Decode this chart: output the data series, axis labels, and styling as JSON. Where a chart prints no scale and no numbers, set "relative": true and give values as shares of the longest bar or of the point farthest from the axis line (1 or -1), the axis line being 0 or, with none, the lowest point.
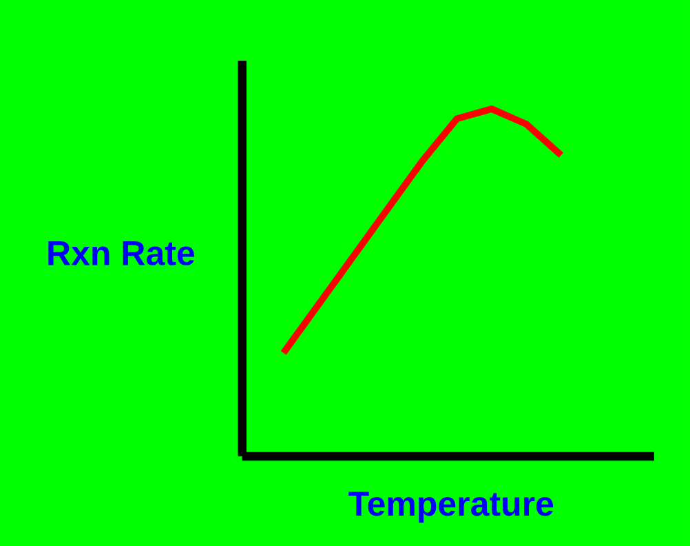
{
  "chart_data": {
    "type": "line",
    "relative": true,
    "xlabel": "Temperature",
    "ylabel": "Rxn Rate",
    "categories": [
      null,
      null,
      null,
      null,
      null,
      null,
      null,
      null,
      null
    ],
    "series": [
      {
        "color": "#ff0000",
        "values": [
          0.298,
          0.436,
          0.574,
          0.712,
          0.85,
          0.972,
          1.0,
          0.956,
          0.867
        ]
      }
    ],
    "grid": false,
    "marker": "none",
    "line_style": "solid"
  }
}
